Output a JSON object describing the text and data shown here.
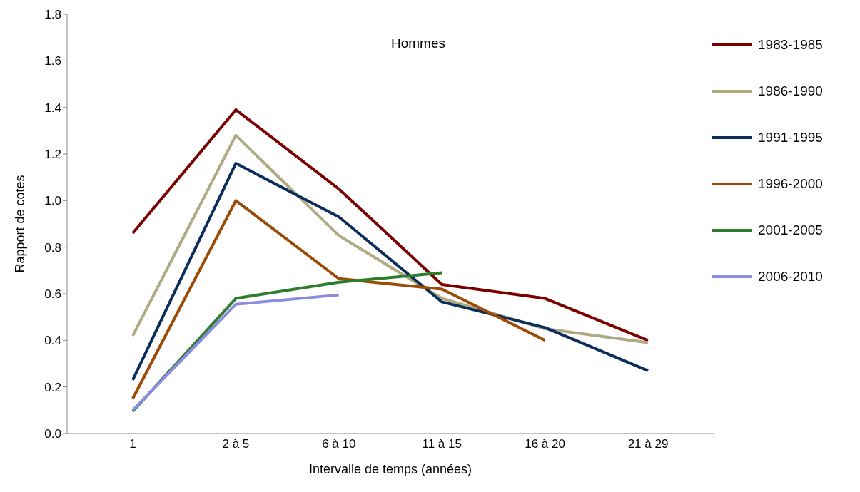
{
  "chart_data": {
    "type": "line",
    "title": "Hommes",
    "xlabel": "Intervalle de temps (années)",
    "ylabel": "Rapport de cotes",
    "categories": [
      "1",
      "2 à 5",
      "6 à 10",
      "11 à 15",
      "16 à 20",
      "21 à 29"
    ],
    "series": [
      {
        "name": "1983-1985",
        "color": "#7b0000",
        "values": [
          0.86,
          1.39,
          1.05,
          0.64,
          0.58,
          0.4
        ]
      },
      {
        "name": "1986-1990",
        "color": "#aeaa82",
        "values": [
          0.42,
          1.28,
          0.85,
          0.58,
          0.45,
          0.39
        ]
      },
      {
        "name": "1991-1995",
        "color": "#0b2d5c",
        "values": [
          0.23,
          1.16,
          0.93,
          0.565,
          0.455,
          0.27
        ]
      },
      {
        "name": "1996-2000",
        "color": "#9c4a04",
        "values": [
          0.15,
          1.0,
          0.665,
          0.62,
          0.4,
          null
        ]
      },
      {
        "name": "2001-2005",
        "color": "#2e7d2e",
        "values": [
          0.095,
          0.58,
          0.65,
          0.69,
          null,
          null
        ]
      },
      {
        "name": "2006-2010",
        "color": "#8c8ce0",
        "values": [
          0.1,
          0.555,
          0.595,
          null,
          null,
          null
        ]
      }
    ],
    "ylim": [
      0,
      1.8
    ],
    "yticks": [
      {
        "value": 0,
        "label": "0.0"
      },
      {
        "value": 0.2,
        "label": "0.2"
      },
      {
        "value": 0.4,
        "label": "0.4"
      },
      {
        "value": 0.6,
        "label": "0.6"
      },
      {
        "value": 0.8,
        "label": "0.8"
      },
      {
        "value": 1.0,
        "label": "1.0"
      },
      {
        "value": 1.2,
        "label": "1.2"
      },
      {
        "value": 1.4,
        "label": "1.4"
      },
      {
        "value": 1.6,
        "label": "1.6"
      },
      {
        "value": 1.8,
        "label": "1.8"
      }
    ],
    "grid": false,
    "legend": "top right",
    "marker": "none",
    "line_style": "solid"
  }
}
